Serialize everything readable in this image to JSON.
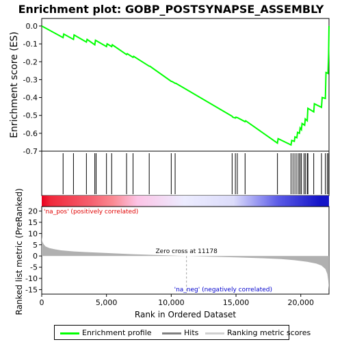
{
  "chart_data": {
    "type": "line",
    "title": "Enrichment plot: GOBP_POSTSYNAPSE_ASSEMBLY",
    "es_panel": {
      "ylabel": "Enrichment score (ES)",
      "ylim": [
        -0.7,
        0.0
      ],
      "yticks": [
        0.0,
        -0.1,
        -0.2,
        -0.3,
        -0.4,
        -0.5,
        -0.6,
        -0.7
      ],
      "ytick_labels": [
        "0.0",
        "-0.1",
        "-0.2",
        "-0.3",
        "-0.4",
        "-0.5",
        "-0.6",
        "-0.7"
      ],
      "line_color": "#00ff00",
      "series": [
        {
          "name": "Enrichment profile",
          "x": [
            0,
            1650,
            1700,
            2450,
            2500,
            3450,
            3500,
            4100,
            4150,
            5000,
            5050,
            5400,
            5450,
            6550,
            6600,
            7050,
            7100,
            8300,
            8350,
            10000,
            10050,
            10300,
            10350,
            14700,
            14750,
            14950,
            15000,
            15050,
            15100,
            15700,
            15750,
            18200,
            18250,
            19250,
            19300,
            19500,
            19550,
            19700,
            19750,
            19900,
            19950,
            20050,
            20100,
            20300,
            20350,
            20500,
            20550,
            21000,
            21050,
            21600,
            21650,
            21900,
            21950,
            22100,
            22150,
            22180
          ],
          "y": [
            0.0,
            -0.065,
            -0.045,
            -0.075,
            -0.05,
            -0.09,
            -0.075,
            -0.105,
            -0.08,
            -0.115,
            -0.1,
            -0.115,
            -0.105,
            -0.16,
            -0.155,
            -0.175,
            -0.17,
            -0.225,
            -0.225,
            -0.31,
            -0.31,
            -0.32,
            -0.32,
            -0.505,
            -0.51,
            -0.515,
            -0.51,
            -0.512,
            -0.512,
            -0.535,
            -0.53,
            -0.655,
            -0.63,
            -0.665,
            -0.64,
            -0.645,
            -0.62,
            -0.625,
            -0.595,
            -0.6,
            -0.57,
            -0.58,
            -0.545,
            -0.555,
            -0.52,
            -0.53,
            -0.46,
            -0.48,
            -0.435,
            -0.455,
            -0.4,
            -0.405,
            -0.26,
            -0.265,
            -0.155,
            0.0
          ]
        }
      ]
    },
    "hits": {
      "name": "Hits",
      "positions": [
        1650,
        2450,
        3450,
        4100,
        4200,
        5000,
        5400,
        6550,
        7050,
        8300,
        10000,
        10300,
        14700,
        14950,
        15100,
        15700,
        18200,
        19250,
        19400,
        19550,
        19700,
        19850,
        19950,
        20050,
        20250,
        20350,
        20500,
        20550,
        21000,
        21600,
        21900,
        22050,
        22150
      ]
    },
    "ranking": {
      "name": "Ranking metric scores",
      "ylabel": "Ranked list metric (PreRanked)",
      "ylim": [
        -17,
        22
      ],
      "yticks": [
        20,
        15,
        10,
        5,
        0,
        -5,
        -10,
        -15
      ],
      "ytick_labels": [
        "20",
        "15",
        "10",
        "5",
        "0",
        "-5",
        "-10",
        "-15"
      ],
      "x": [
        0,
        50,
        150,
        300,
        600,
        1000,
        1500,
        2500,
        3500,
        5000,
        7000,
        9000,
        11178,
        13000,
        15000,
        17000,
        18500,
        19500,
        20500,
        21200,
        21600,
        21900,
        22050,
        22120,
        22180
      ],
      "y": [
        8.5,
        6.5,
        5.2,
        4.2,
        3.5,
        3.0,
        2.5,
        2.0,
        1.7,
        1.3,
        0.8,
        0.4,
        0.0,
        -0.3,
        -0.6,
        -1.0,
        -1.4,
        -1.9,
        -2.6,
        -3.4,
        -4.3,
        -5.8,
        -8.0,
        -11.0,
        -15.0
      ],
      "fill_color": "#b0b0b0"
    },
    "x_axis": {
      "xlabel": "Rank in Ordered Dataset",
      "xlim": [
        0,
        22180
      ],
      "xticks": [
        0,
        5000,
        10000,
        15000,
        20000
      ],
      "xtick_labels": [
        "0",
        "5,000",
        "10,000",
        "15,000",
        "20,000"
      ]
    },
    "annotations": {
      "zero_cross_text": "Zero cross at 11178",
      "zero_cross_rank": 11178,
      "pos_label": "'na_pos' (positively correlated)",
      "neg_label": "'na_neg' (negatively correlated)"
    },
    "colorbar": {
      "stops": [
        {
          "x": 0,
          "color": "#e8001e"
        },
        {
          "x": 700,
          "color": "#f02a3c"
        },
        {
          "x": 3800,
          "color": "#f5606f"
        },
        {
          "x": 5500,
          "color": "#fa8a92"
        },
        {
          "x": 7400,
          "color": "#fcc4e6"
        },
        {
          "x": 11000,
          "color": "#ececff"
        },
        {
          "x": 14800,
          "color": "#dcdcfa"
        },
        {
          "x": 17000,
          "color": "#8c8cf0"
        },
        {
          "x": 18300,
          "color": "#5a5ae6"
        },
        {
          "x": 21500,
          "color": "#1414c8"
        },
        {
          "x": 22180,
          "color": "#1414c8"
        }
      ]
    },
    "legend": {
      "placement": "bottom",
      "items": [
        {
          "label": "Enrichment profile",
          "color": "#00ff00"
        },
        {
          "label": "Hits",
          "color": "#808080"
        },
        {
          "label": "Ranking metric scores",
          "color": "#d0d0d0"
        }
      ]
    }
  }
}
